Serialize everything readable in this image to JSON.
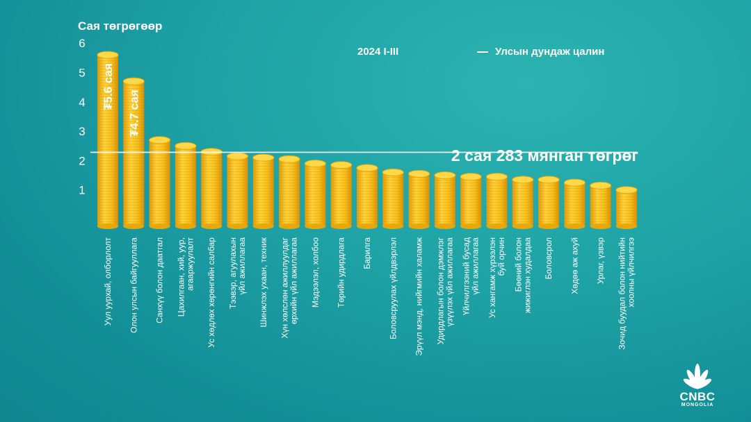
{
  "header": {
    "unit_title": "Сая төгрөгөөр",
    "period": "2024 I-III",
    "legend_label": "Улсын дундаж цалин",
    "average_label": "2 сая 283 мянган төгрөг"
  },
  "logo": {
    "brand": "CNBC",
    "sub": "MONGOLIA"
  },
  "colors": {
    "coin": "#f5c01f",
    "coin_dark": "#e6a80c",
    "coin_top": "#ffd84a",
    "average_line": "#ffffff"
  },
  "chart_data": {
    "type": "bar",
    "title": "",
    "ylabel": "Сая төгрөгөөр",
    "ylim": [
      0,
      6
    ],
    "yticks": [
      1,
      2,
      3,
      4,
      5,
      6
    ],
    "average": 2.283,
    "categories": [
      [
        "Уул уурхай, олборлолт"
      ],
      [
        "Олон улсын байгууллага"
      ],
      [
        "Санхүү болон даатгал"
      ],
      [
        "Цахилгаан, хий, уур,",
        "агааржуулалт"
      ],
      [
        "Ус хөдлөх хөрөнгийн салбар"
      ],
      [
        "Тээвэр, агуулахын",
        "үйл ажиллагаа"
      ],
      [
        "Шинжлэх ухаан, техник"
      ],
      [
        "Хүн хөлслөн ажиллуулдаг",
        "өрхийн үйл ажиллагаа"
      ],
      [
        "Мэдээлэл, холбоо"
      ],
      [
        "Төрийн удирдлага"
      ],
      [
        "Барилга"
      ],
      [
        "Боловсруулах үйлдвэрлэл"
      ],
      [
        "Эрүүл мэнд, нийгмийн халамж"
      ],
      [
        "Удирдлагын болон дэмжлэг",
        "үзүүлэх үйл ажиллагаа"
      ],
      [
        "Үйлчилгээний бусад",
        "үйл ажиллагаа"
      ],
      [
        "Ус хангамж хүрээлэн",
        "буй орчин"
      ],
      [
        "Бөөний болон",
        "жижиглэн худалдаа"
      ],
      [
        "Боловсрол"
      ],
      [
        "Хөдөө аж ахуй"
      ],
      [
        "Урлаг, үзвэр"
      ],
      [
        "Зочид буудал болон нийтийн",
        "хоолны үйлчилгээ"
      ]
    ],
    "values": [
      5.6,
      4.7,
      2.7,
      2.5,
      2.3,
      2.15,
      2.1,
      2.05,
      1.9,
      1.85,
      1.75,
      1.6,
      1.55,
      1.5,
      1.45,
      1.45,
      1.35,
      1.35,
      1.25,
      1.15,
      1.0
    ],
    "data_labels": [
      {
        "index": 0,
        "text": "₮5.6 сая"
      },
      {
        "index": 1,
        "text": "₮4.7 сая"
      }
    ]
  }
}
